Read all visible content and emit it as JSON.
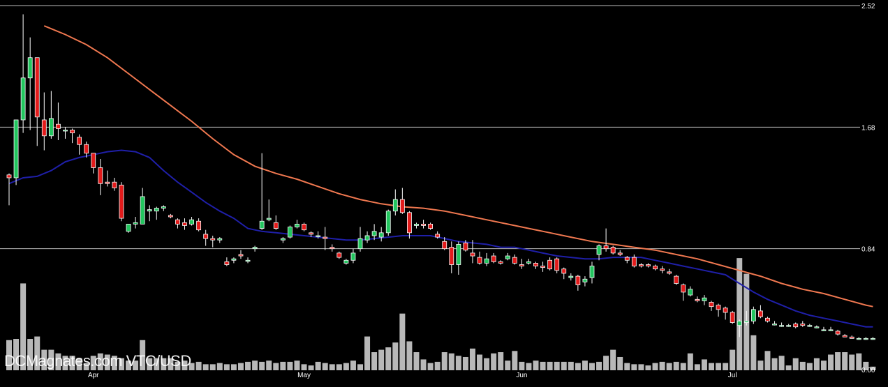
{
  "watermark": "DCMagnates.com VTC/USD",
  "chart_data": {
    "type": "candlestick",
    "pair": "VTC/USD",
    "y_axis": {
      "ticks": [
        0.0,
        0.84,
        1.68,
        2.52
      ],
      "tick_labels": [
        "0.00",
        "0.84",
        "1.68",
        "2.52"
      ],
      "range": [
        0,
        2.52
      ],
      "gridlines": [
        0.84,
        1.68,
        2.52
      ]
    },
    "x_axis": {
      "month_labels": [
        "Apr",
        "May",
        "Jun",
        "Jul"
      ],
      "month_label_index": [
        12,
        42,
        73,
        103
      ]
    },
    "colors": {
      "background": "#000000",
      "up": "#22c55e",
      "down": "#e31b1b",
      "wick": "#ffffff",
      "gridline": "#bdbdbd",
      "volume": "#b8b8b8",
      "ma_fast": "#1f1fa8",
      "ma_slow": "#f07850",
      "text": "#ffffff"
    },
    "candles": [
      [
        1.35,
        1.36,
        1.14,
        1.33
      ],
      [
        1.33,
        1.73,
        1.28,
        1.73
      ],
      [
        1.73,
        2.46,
        1.64,
        2.02
      ],
      [
        2.02,
        2.3,
        1.66,
        2.16
      ],
      [
        2.16,
        2.16,
        1.55,
        1.75
      ],
      [
        1.73,
        1.92,
        1.52,
        1.62
      ],
      [
        1.62,
        1.93,
        1.6,
        1.74
      ],
      [
        1.7,
        1.85,
        1.59,
        1.67
      ],
      [
        1.66,
        1.68,
        1.6,
        1.66
      ],
      [
        1.66,
        1.67,
        1.57,
        1.64
      ],
      [
        1.61,
        1.63,
        1.49,
        1.56
      ],
      [
        1.56,
        1.58,
        1.47,
        1.5
      ],
      [
        1.5,
        1.5,
        1.36,
        1.4
      ],
      [
        1.4,
        1.46,
        1.21,
        1.29
      ],
      [
        1.3,
        1.38,
        1.27,
        1.29
      ],
      [
        1.3,
        1.33,
        1.24,
        1.26
      ],
      [
        1.28,
        1.3,
        1.03,
        1.05
      ],
      [
        0.96,
        1.01,
        0.95,
        1.01
      ],
      [
        1.01,
        1.06,
        0.98,
        1.02
      ],
      [
        1.01,
        1.26,
        1.01,
        1.2
      ],
      [
        1.1,
        1.14,
        1.03,
        1.11
      ],
      [
        1.1,
        1.13,
        1.04,
        1.12
      ],
      [
        1.12,
        1.14,
        1.1,
        1.13
      ],
      [
        1.07,
        1.08,
        1.05,
        1.06
      ],
      [
        1.04,
        1.05,
        0.98,
        1.01
      ],
      [
        1.02,
        1.05,
        0.97,
        1.0
      ],
      [
        1.01,
        1.06,
        1.0,
        1.04
      ],
      [
        1.03,
        1.05,
        0.96,
        0.97
      ],
      [
        0.94,
        0.97,
        0.86,
        0.91
      ],
      [
        0.91,
        0.93,
        0.85,
        0.9
      ],
      [
        0.9,
        0.92,
        0.88,
        0.91
      ],
      [
        0.75,
        0.78,
        0.72,
        0.73
      ],
      [
        0.76,
        0.78,
        0.74,
        0.77
      ],
      [
        0.8,
        0.83,
        0.77,
        0.79
      ],
      [
        0.76,
        0.78,
        0.74,
        0.76
      ],
      [
        0.84,
        0.86,
        0.82,
        0.85
      ],
      [
        0.98,
        1.5,
        0.97,
        1.03
      ],
      [
        1.04,
        1.18,
        1.03,
        1.05
      ],
      [
        1.02,
        1.07,
        0.97,
        0.98
      ],
      [
        0.9,
        0.92,
        0.88,
        0.91
      ],
      [
        0.92,
        1.0,
        0.91,
        0.99
      ],
      [
        0.99,
        1.04,
        0.98,
        1.01
      ],
      [
        1.01,
        1.02,
        0.96,
        0.97
      ],
      [
        0.95,
        0.96,
        0.92,
        0.94
      ],
      [
        0.93,
        0.96,
        0.91,
        0.93
      ],
      [
        0.92,
        0.99,
        0.83,
        0.91
      ],
      [
        0.85,
        0.87,
        0.82,
        0.84
      ],
      [
        0.81,
        0.82,
        0.77,
        0.78
      ],
      [
        0.74,
        0.77,
        0.73,
        0.76
      ],
      [
        0.76,
        0.84,
        0.74,
        0.81
      ],
      [
        0.84,
        0.99,
        0.82,
        0.91
      ],
      [
        0.9,
        0.96,
        0.88,
        0.93
      ],
      [
        0.93,
        1.01,
        0.9,
        0.96
      ],
      [
        0.92,
        0.99,
        0.89,
        0.95
      ],
      [
        0.95,
        1.11,
        0.93,
        1.1
      ],
      [
        1.1,
        1.25,
        1.07,
        1.18
      ],
      [
        1.18,
        1.26,
        1.08,
        1.09
      ],
      [
        1.09,
        1.1,
        0.91,
        0.95
      ],
      [
        1.0,
        1.02,
        0.98,
        1.01
      ],
      [
        1.01,
        1.04,
        0.98,
        1.0
      ],
      [
        1.01,
        1.02,
        0.97,
        0.98
      ],
      [
        0.94,
        0.96,
        0.91,
        0.92
      ],
      [
        0.89,
        0.92,
        0.83,
        0.84
      ],
      [
        0.85,
        0.89,
        0.67,
        0.73
      ],
      [
        0.73,
        0.89,
        0.66,
        0.87
      ],
      [
        0.88,
        0.9,
        0.82,
        0.83
      ],
      [
        0.81,
        0.9,
        0.74,
        0.79
      ],
      [
        0.78,
        0.82,
        0.73,
        0.74
      ],
      [
        0.74,
        0.81,
        0.72,
        0.77
      ],
      [
        0.79,
        0.81,
        0.74,
        0.75
      ],
      [
        0.75,
        0.76,
        0.73,
        0.74
      ],
      [
        0.77,
        0.81,
        0.76,
        0.79
      ],
      [
        0.78,
        0.8,
        0.73,
        0.74
      ],
      [
        0.73,
        0.77,
        0.7,
        0.72
      ],
      [
        0.74,
        0.77,
        0.73,
        0.75
      ],
      [
        0.74,
        0.75,
        0.7,
        0.72
      ],
      [
        0.72,
        0.75,
        0.68,
        0.71
      ],
      [
        0.76,
        0.78,
        0.69,
        0.7
      ],
      [
        0.77,
        0.78,
        0.67,
        0.69
      ],
      [
        0.7,
        0.71,
        0.63,
        0.67
      ],
      [
        0.64,
        0.67,
        0.62,
        0.65
      ],
      [
        0.65,
        0.66,
        0.55,
        0.59
      ],
      [
        0.61,
        0.65,
        0.58,
        0.63
      ],
      [
        0.64,
        0.75,
        0.6,
        0.72
      ],
      [
        0.8,
        0.87,
        0.76,
        0.86
      ],
      [
        0.86,
        0.98,
        0.82,
        0.84
      ],
      [
        0.85,
        0.86,
        0.8,
        0.81
      ],
      [
        0.81,
        0.83,
        0.79,
        0.8
      ],
      [
        0.78,
        0.79,
        0.74,
        0.76
      ],
      [
        0.78,
        0.8,
        0.71,
        0.72
      ],
      [
        0.73,
        0.74,
        0.71,
        0.72
      ],
      [
        0.73,
        0.74,
        0.71,
        0.72
      ],
      [
        0.72,
        0.73,
        0.69,
        0.7
      ],
      [
        0.7,
        0.72,
        0.67,
        0.69
      ],
      [
        0.68,
        0.7,
        0.66,
        0.67
      ],
      [
        0.65,
        0.66,
        0.59,
        0.6
      ],
      [
        0.59,
        0.6,
        0.48,
        0.54
      ],
      [
        0.52,
        0.58,
        0.51,
        0.56
      ],
      [
        0.49,
        0.51,
        0.47,
        0.48
      ],
      [
        0.48,
        0.52,
        0.45,
        0.5
      ],
      [
        0.47,
        0.48,
        0.41,
        0.44
      ],
      [
        0.45,
        0.46,
        0.37,
        0.42
      ],
      [
        0.43,
        0.44,
        0.35,
        0.4
      ],
      [
        0.4,
        0.41,
        0.32,
        0.33
      ],
      [
        0.31,
        0.35,
        0.23,
        0.34
      ],
      [
        0.33,
        0.41,
        0.31,
        0.34
      ],
      [
        0.34,
        0.44,
        0.32,
        0.42
      ],
      [
        0.41,
        0.45,
        0.36,
        0.37
      ],
      [
        0.36,
        0.37,
        0.33,
        0.34
      ],
      [
        0.32,
        0.34,
        0.31,
        0.32
      ],
      [
        0.31,
        0.33,
        0.3,
        0.31
      ],
      [
        0.31,
        0.32,
        0.3,
        0.31
      ],
      [
        0.32,
        0.33,
        0.29,
        0.3
      ],
      [
        0.32,
        0.34,
        0.3,
        0.31
      ],
      [
        0.31,
        0.32,
        0.3,
        0.31
      ],
      [
        0.3,
        0.31,
        0.29,
        0.3
      ],
      [
        0.28,
        0.3,
        0.27,
        0.28
      ],
      [
        0.28,
        0.3,
        0.27,
        0.28
      ],
      [
        0.27,
        0.28,
        0.24,
        0.25
      ],
      [
        0.24,
        0.25,
        0.23,
        0.23
      ],
      [
        0.23,
        0.24,
        0.22,
        0.22
      ],
      [
        0.22,
        0.23,
        0.21,
        0.22
      ],
      [
        0.22,
        0.23,
        0.21,
        0.22
      ],
      [
        0.22,
        0.23,
        0.21,
        0.22
      ]
    ],
    "volume": [
      0.25,
      0.26,
      0.72,
      0.26,
      0.28,
      0.17,
      0.17,
      0.14,
      0.12,
      0.12,
      0.1,
      0.06,
      0.12,
      0.14,
      0.13,
      0.12,
      0.1,
      0.08,
      0.08,
      0.25,
      0.1,
      0.1,
      0.1,
      0.1,
      0.07,
      0.08,
      0.06,
      0.07,
      0.05,
      0.05,
      0.06,
      0.05,
      0.05,
      0.06,
      0.07,
      0.08,
      0.07,
      0.08,
      0.06,
      0.07,
      0.07,
      0.08,
      0.05,
      0.04,
      0.07,
      0.06,
      0.05,
      0.05,
      0.06,
      0.08,
      0.05,
      0.28,
      0.15,
      0.17,
      0.19,
      0.23,
      0.47,
      0.24,
      0.15,
      0.09,
      0.06,
      0.07,
      0.15,
      0.14,
      0.12,
      0.11,
      0.18,
      0.13,
      0.1,
      0.14,
      0.15,
      0.08,
      0.16,
      0.07,
      0.06,
      0.08,
      0.07,
      0.07,
      0.07,
      0.07,
      0.07,
      0.06,
      0.08,
      0.06,
      0.07,
      0.12,
      0.17,
      0.11,
      0.06,
      0.05,
      0.05,
      0.04,
      0.06,
      0.07,
      0.06,
      0.07,
      0.06,
      0.14,
      0.05,
      0.09,
      0.06,
      0.06,
      0.06,
      0.17,
      0.93,
      0.8,
      0.29,
      0.08,
      0.16,
      0.1,
      0.12,
      0.04,
      0.1,
      0.07,
      0.06,
      0.1,
      0.08,
      0.13,
      0.15,
      0.15,
      0.13,
      0.14,
      0.07,
      0.03
    ],
    "ma_fast": [
      [
        0,
        1.29
      ],
      [
        2,
        1.33
      ],
      [
        4,
        1.34
      ],
      [
        6,
        1.38
      ],
      [
        8,
        1.44
      ],
      [
        10,
        1.47
      ],
      [
        12,
        1.49
      ],
      [
        14,
        1.51
      ],
      [
        16,
        1.52
      ],
      [
        18,
        1.51
      ],
      [
        20,
        1.47
      ],
      [
        22,
        1.38
      ],
      [
        24,
        1.3
      ],
      [
        26,
        1.23
      ],
      [
        28,
        1.16
      ],
      [
        30,
        1.1
      ],
      [
        32,
        1.05
      ],
      [
        34,
        0.98
      ],
      [
        36,
        0.96
      ],
      [
        38,
        0.95
      ],
      [
        40,
        0.94
      ],
      [
        42,
        0.93
      ],
      [
        44,
        0.92
      ],
      [
        46,
        0.91
      ],
      [
        48,
        0.9
      ],
      [
        50,
        0.9
      ],
      [
        52,
        0.91
      ],
      [
        54,
        0.92
      ],
      [
        56,
        0.93
      ],
      [
        58,
        0.93
      ],
      [
        60,
        0.93
      ],
      [
        62,
        0.91
      ],
      [
        64,
        0.89
      ],
      [
        66,
        0.88
      ],
      [
        68,
        0.87
      ],
      [
        70,
        0.85
      ],
      [
        72,
        0.85
      ],
      [
        74,
        0.83
      ],
      [
        76,
        0.81
      ],
      [
        78,
        0.79
      ],
      [
        80,
        0.78
      ],
      [
        82,
        0.77
      ],
      [
        84,
        0.77
      ],
      [
        86,
        0.78
      ],
      [
        88,
        0.78
      ],
      [
        90,
        0.78
      ],
      [
        92,
        0.76
      ],
      [
        94,
        0.74
      ],
      [
        96,
        0.72
      ],
      [
        98,
        0.7
      ],
      [
        100,
        0.68
      ],
      [
        102,
        0.66
      ],
      [
        104,
        0.6
      ],
      [
        106,
        0.54
      ],
      [
        108,
        0.49
      ],
      [
        110,
        0.45
      ],
      [
        112,
        0.41
      ],
      [
        114,
        0.38
      ],
      [
        116,
        0.36
      ],
      [
        118,
        0.34
      ],
      [
        120,
        0.32
      ],
      [
        122,
        0.3
      ],
      [
        123,
        0.3
      ]
    ],
    "ma_slow": [
      [
        5,
        2.38
      ],
      [
        8,
        2.32
      ],
      [
        11,
        2.25
      ],
      [
        14,
        2.16
      ],
      [
        17,
        2.05
      ],
      [
        20,
        1.94
      ],
      [
        23,
        1.83
      ],
      [
        26,
        1.72
      ],
      [
        29,
        1.6
      ],
      [
        32,
        1.49
      ],
      [
        35,
        1.41
      ],
      [
        38,
        1.36
      ],
      [
        41,
        1.32
      ],
      [
        44,
        1.27
      ],
      [
        47,
        1.22
      ],
      [
        50,
        1.18
      ],
      [
        53,
        1.15
      ],
      [
        56,
        1.13
      ],
      [
        59,
        1.12
      ],
      [
        62,
        1.1
      ],
      [
        65,
        1.07
      ],
      [
        68,
        1.04
      ],
      [
        71,
        1.01
      ],
      [
        74,
        0.98
      ],
      [
        77,
        0.95
      ],
      [
        80,
        0.92
      ],
      [
        83,
        0.89
      ],
      [
        86,
        0.87
      ],
      [
        89,
        0.85
      ],
      [
        92,
        0.83
      ],
      [
        95,
        0.8
      ],
      [
        98,
        0.77
      ],
      [
        101,
        0.73
      ],
      [
        104,
        0.69
      ],
      [
        107,
        0.65
      ],
      [
        110,
        0.6
      ],
      [
        113,
        0.56
      ],
      [
        116,
        0.53
      ],
      [
        119,
        0.49
      ],
      [
        122,
        0.45
      ],
      [
        123,
        0.44
      ]
    ]
  }
}
